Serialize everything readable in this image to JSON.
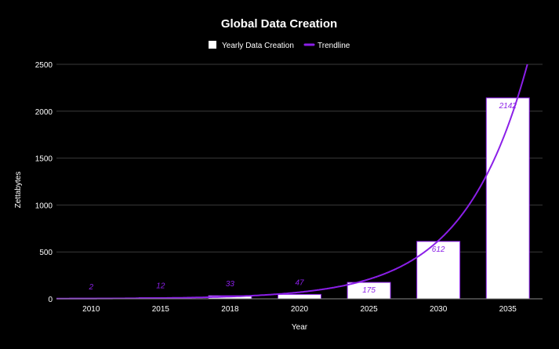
{
  "chart_data": {
    "type": "bar",
    "title": "Global Data Creation",
    "xlabel": "Year",
    "ylabel": "Zettabytes",
    "ylim": [
      0,
      2500
    ],
    "yticks": [
      0,
      500,
      1000,
      1500,
      2000,
      2500
    ],
    "grid": true,
    "legend_position": "top-center",
    "categories": [
      "2010",
      "2015",
      "2018",
      "2020",
      "2025",
      "2030",
      "2035"
    ],
    "series": [
      {
        "name": "Yearly Data Creation",
        "type": "bar",
        "color": "#ffffff",
        "border_color": "#8b1fe8",
        "values": [
          2,
          12,
          33,
          47,
          175,
          612,
          2142
        ],
        "labels": [
          "2",
          "12",
          "33",
          "47",
          "175",
          "612",
          "2142"
        ]
      },
      {
        "name": "Trendline",
        "type": "line",
        "color": "#8b1fe8",
        "trend": "exponential"
      }
    ],
    "background_color": "#000000",
    "text_color": "#ffffff",
    "grid_color": "#3a3a3a",
    "label_color": "#8b1fe8"
  }
}
